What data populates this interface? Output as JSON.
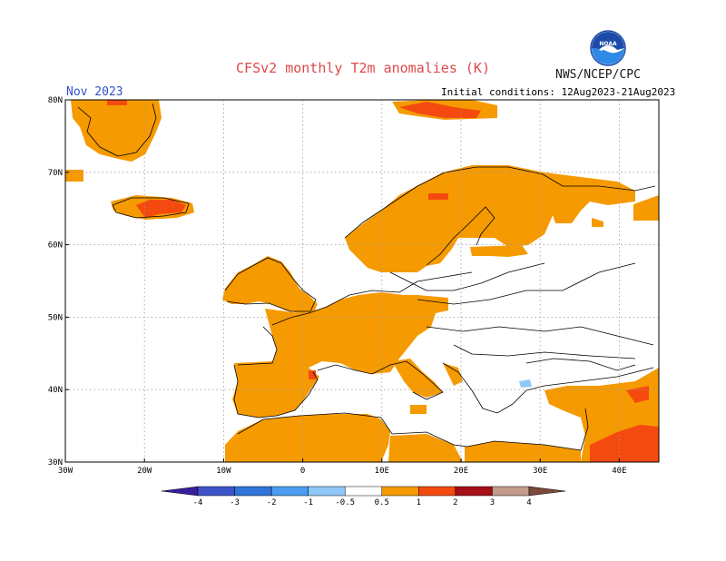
{
  "header": {
    "title": "CFSv2 monthly T2m anomalies (K)",
    "agency": "NWS/NCEP/CPC",
    "logo_text": "NOAA",
    "forecast_month": "Nov 2023",
    "initial_conditions": "Initial conditions: 12Aug2023-21Aug2023"
  },
  "map": {
    "lat_labels": [
      "80N",
      "70N",
      "60N",
      "50N",
      "40N",
      "30N"
    ],
    "lon_labels": [
      "30W",
      "20W",
      "10W",
      "0",
      "10E",
      "20E",
      "30E",
      "40E"
    ],
    "lat_range": [
      30,
      80
    ],
    "lon_range": [
      -30,
      45
    ],
    "grid": "dotted every 10 degrees"
  },
  "colorbar": {
    "colors": [
      "#3a1d9e",
      "#3c52c8",
      "#2f74d8",
      "#4a9cf0",
      "#8ec8f8",
      "#ffffff",
      "#f59a00",
      "#f44a10",
      "#a50f15",
      "#c49a8c",
      "#7a4a3a"
    ],
    "labels": [
      "-4",
      "-3",
      "-2",
      "-1",
      "-0.5",
      "0.5",
      "1",
      "2",
      "3",
      "4"
    ]
  }
}
